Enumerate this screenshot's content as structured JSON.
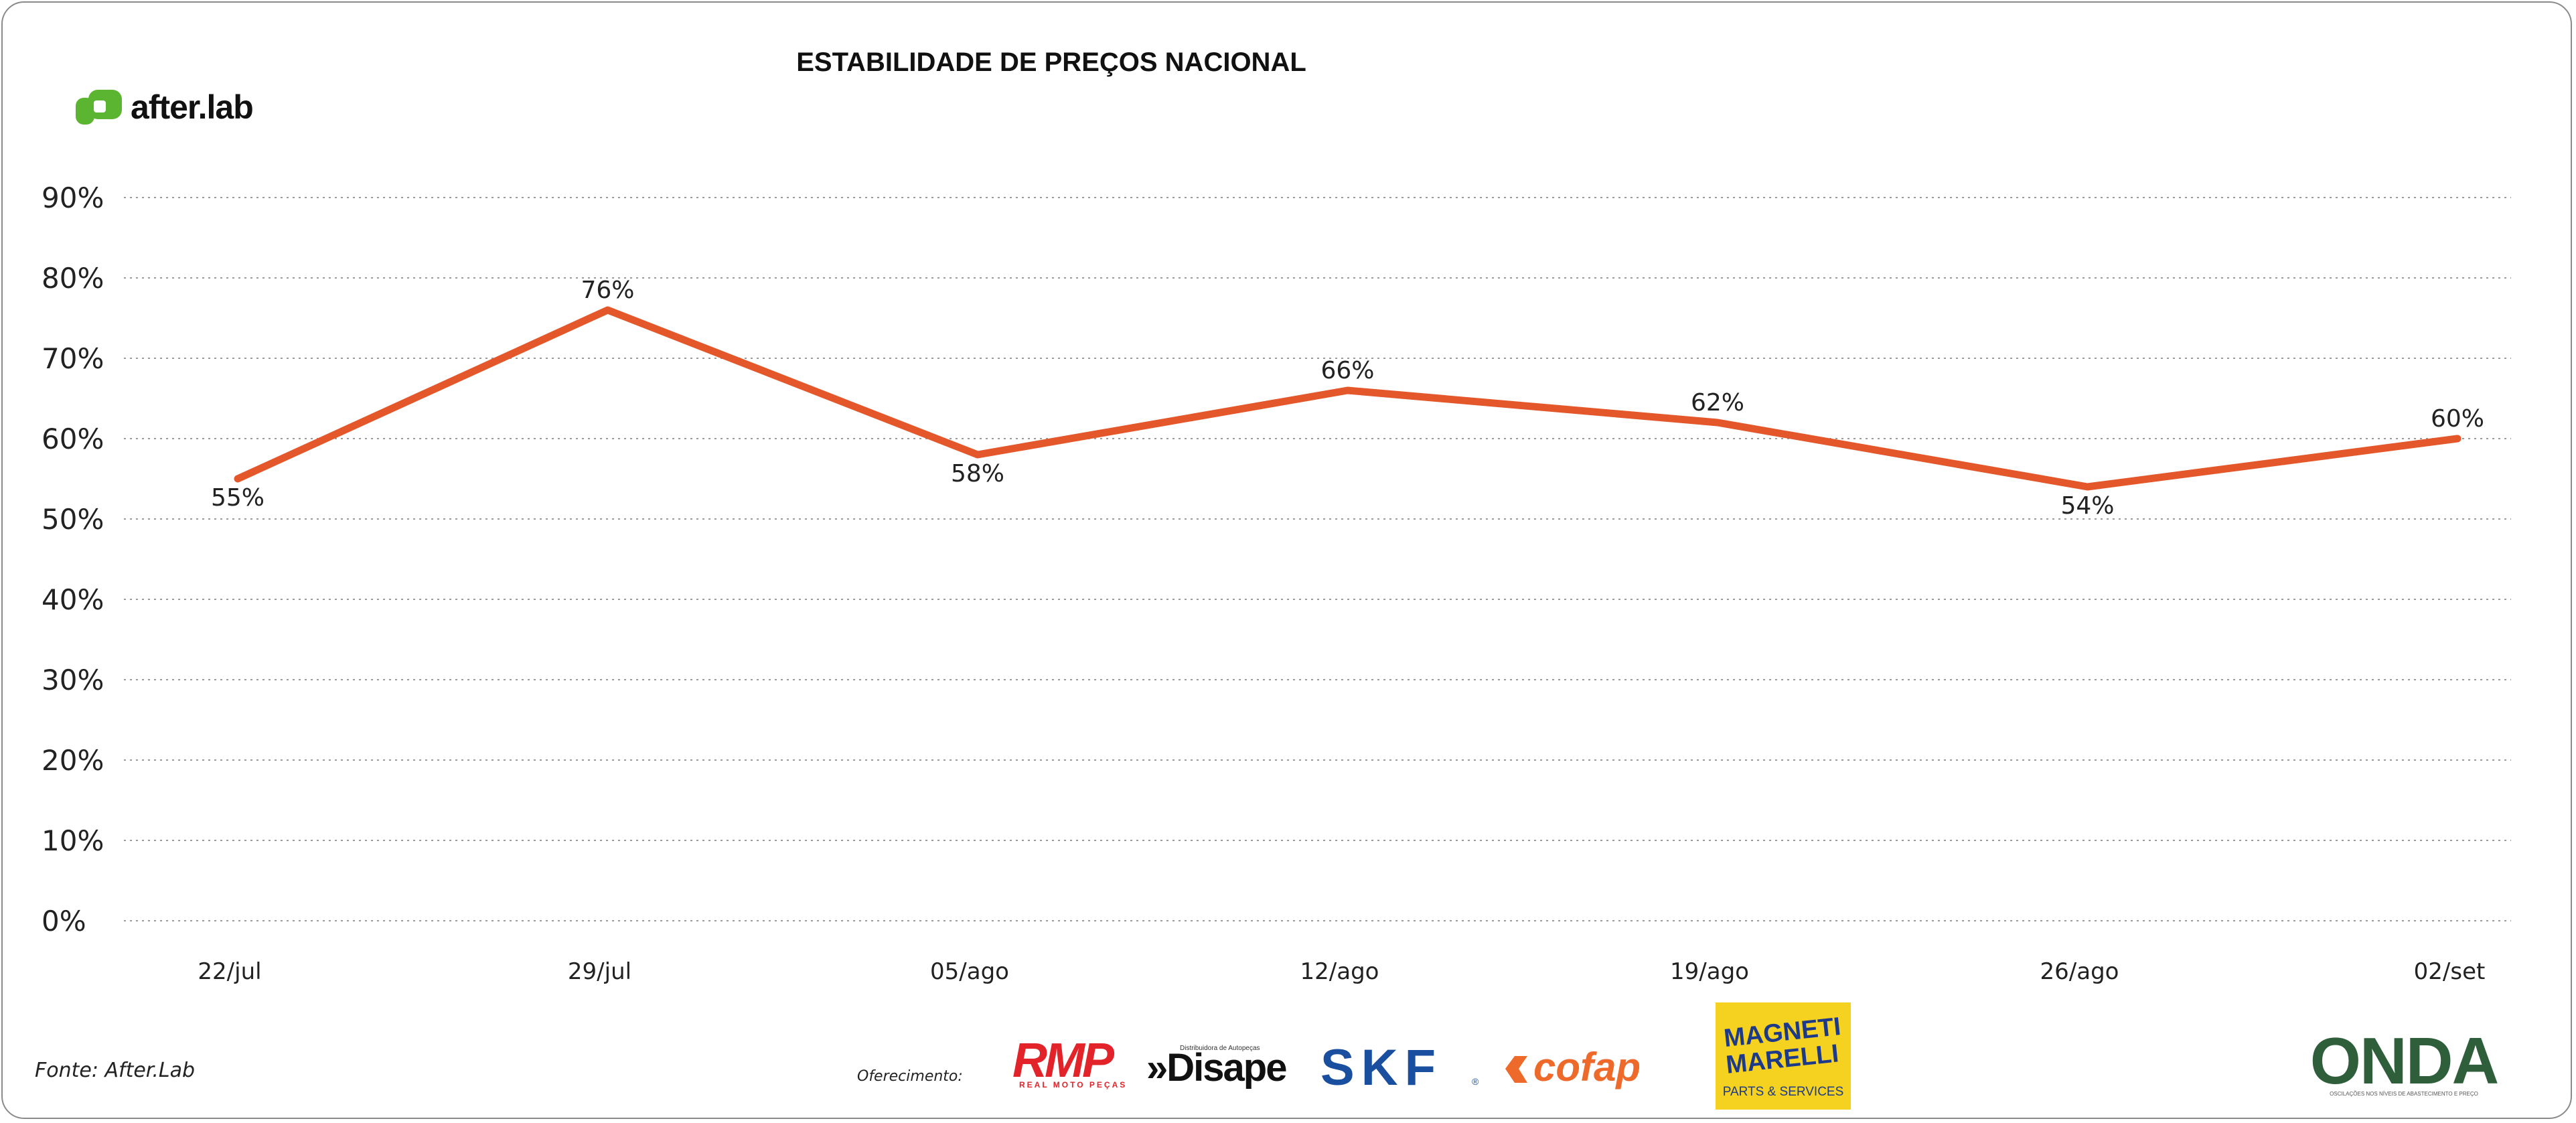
{
  "brand": {
    "name": "after.lab",
    "color": "#5cb531"
  },
  "footer": {
    "source": "Fonte: After.Lab",
    "sponsored_by": "Oferecimento:"
  },
  "sponsors": {
    "rmp": {
      "name": "RMP",
      "tagline": "REAL MOTO PEÇAS",
      "color": "#e2232a"
    },
    "disape": {
      "name": "»Disape",
      "tagline": "Distribuidora de Autopeças",
      "color": "#111111"
    },
    "skf": {
      "name": "SKF",
      "color": "#1a4fa0"
    },
    "cofap": {
      "name": "cofap",
      "color": "#ee6a2a"
    },
    "magneti": {
      "line1": "MAGNETI",
      "line2": "MARELLI",
      "tagline": "PARTS & SERVICES",
      "bg": "#f5d21f",
      "color": "#1d3a8a"
    },
    "onda": {
      "name": "ONDA",
      "tagline": "OSCILAÇÕES NOS NÍVEIS DE ABASTECIMENTO E PREÇO",
      "color": "#2f5e3a"
    }
  },
  "chart_data": {
    "type": "line",
    "title": "ESTABILIDADE DE PREÇOS NACIONAL",
    "xlabel": "",
    "ylabel": "",
    "categories": [
      "22/jul",
      "29/jul",
      "05/ago",
      "12/ago",
      "19/ago",
      "26/ago",
      "02/set"
    ],
    "series": [
      {
        "values": [
          55,
          76,
          58,
          66,
          62,
          54,
          60
        ],
        "color": "#e4572b"
      }
    ],
    "data_labels": [
      "55%",
      "76%",
      "58%",
      "66%",
      "62%",
      "54%",
      "60%"
    ],
    "y_ticks": [
      "0%",
      "10%",
      "20%",
      "30%",
      "40%",
      "50%",
      "60%",
      "70%",
      "80%",
      "90%"
    ],
    "ylim": [
      0,
      90
    ],
    "grid": true,
    "legend": "none"
  }
}
